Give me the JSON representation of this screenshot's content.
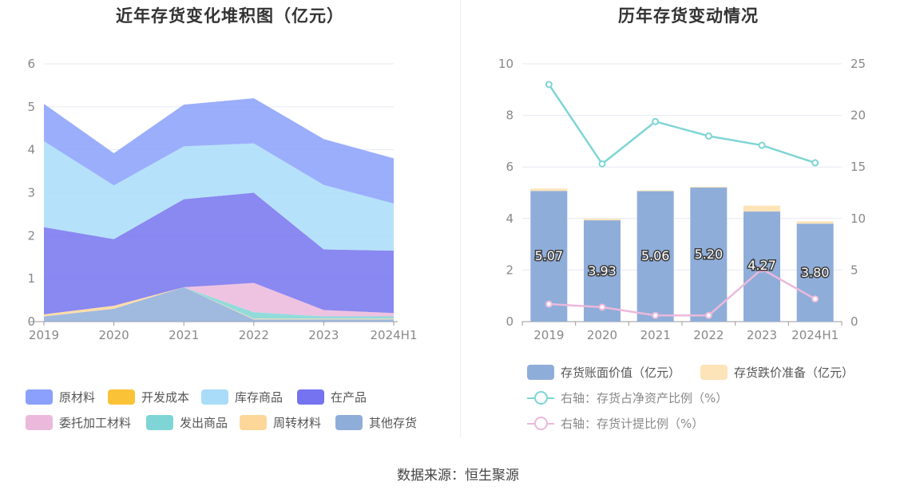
{
  "left_chart": {
    "title": "近年存货变化堆积图（亿元）",
    "legend": [
      {
        "label": "原材料",
        "color": "#8aa0fb"
      },
      {
        "label": "开发成本",
        "color": "#fac337"
      },
      {
        "label": "库存商品",
        "color": "#a9dcf9"
      },
      {
        "label": "在产品",
        "color": "#7573ef"
      },
      {
        "label": "委托加工材料",
        "color": "#ebb9dc"
      },
      {
        "label": "发出商品",
        "color": "#7fd5d5"
      },
      {
        "label": "周转材料",
        "color": "#fdd79a"
      },
      {
        "label": "其他存货",
        "color": "#8fadd9"
      }
    ]
  },
  "right_chart": {
    "title": "历年存货变动情况",
    "legend": [
      {
        "label": "存货账面价值（亿元）",
        "color": "#8fadd9",
        "kind": "bar"
      },
      {
        "label": "存货跌价准备（亿元）",
        "color": "#fde3b8",
        "kind": "bar"
      },
      {
        "label": "右轴：存货占净资产比例（%）",
        "color": "#7fd5d5",
        "kind": "line"
      },
      {
        "label": "右轴：存货计提比例（%）",
        "color": "#ebb9dc",
        "kind": "line"
      }
    ]
  },
  "source": "数据来源：恒生聚源",
  "chart_data": [
    {
      "type": "area",
      "stacked": true,
      "title": "近年存货变化堆积图（亿元）",
      "categories": [
        "2019",
        "2020",
        "2021",
        "2022",
        "2023",
        "2024H1"
      ],
      "ylim": [
        0,
        6
      ],
      "yticks": [
        0,
        1,
        2,
        3,
        4,
        5,
        6
      ],
      "grid": true,
      "legend_position": "bottom",
      "series": [
        {
          "name": "其他存货",
          "color": "#8fadd9",
          "values": [
            0.12,
            0.3,
            0.8,
            0.05,
            0.05,
            0.05
          ]
        },
        {
          "name": "周转材料",
          "color": "#fdd79a",
          "values": [
            0.05,
            0.07,
            0.0,
            0.02,
            0.02,
            0.02
          ]
        },
        {
          "name": "发出商品",
          "color": "#7fd5d5",
          "values": [
            0.0,
            0.0,
            0.0,
            0.15,
            0.05,
            0.05
          ]
        },
        {
          "name": "委托加工材料",
          "color": "#ebb9dc",
          "values": [
            0.0,
            0.0,
            0.0,
            0.68,
            0.15,
            0.08
          ]
        },
        {
          "name": "在产品",
          "color": "#7573ef",
          "values": [
            2.03,
            1.55,
            2.05,
            2.1,
            1.41,
            1.45
          ]
        },
        {
          "name": "库存商品",
          "color": "#a9dcf9",
          "values": [
            2.0,
            1.25,
            1.23,
            1.15,
            1.5,
            1.1
          ]
        },
        {
          "name": "开发成本",
          "color": "#fac337",
          "values": [
            0.0,
            0.0,
            0.0,
            0.0,
            0.0,
            0.0
          ]
        },
        {
          "name": "原材料",
          "color": "#8aa0fb",
          "values": [
            0.87,
            0.75,
            0.97,
            1.05,
            1.07,
            1.05
          ]
        }
      ]
    },
    {
      "type": "bar",
      "stacked": true,
      "title": "历年存货变动情况",
      "categories": [
        "2019",
        "2020",
        "2021",
        "2022",
        "2023",
        "2024H1"
      ],
      "ylim": [
        0,
        10
      ],
      "yticks": [
        0,
        2,
        4,
        6,
        8,
        10
      ],
      "y2lim": [
        0,
        25
      ],
      "y2ticks": [
        0,
        5,
        10,
        15,
        20,
        25
      ],
      "grid": true,
      "legend_position": "bottom",
      "series": [
        {
          "name": "存货账面价值（亿元）",
          "type": "bar",
          "color": "#8fadd9",
          "values": [
            5.07,
            3.93,
            5.06,
            5.2,
            4.27,
            3.8
          ],
          "labels": [
            "5.07",
            "3.93",
            "5.06",
            "5.20",
            "4.27",
            "3.80"
          ]
        },
        {
          "name": "存货跌价准备（亿元）",
          "type": "bar",
          "color": "#fde3b8",
          "values": [
            0.09,
            0.06,
            0.03,
            0.03,
            0.23,
            0.09
          ]
        },
        {
          "name": "右轴：存货占净资产比例（%）",
          "type": "line",
          "axis": "right",
          "color": "#7fd5d5",
          "values": [
            23.0,
            15.3,
            19.4,
            18.0,
            17.1,
            15.4
          ]
        },
        {
          "name": "右轴：存货计提比例（%）",
          "type": "line",
          "axis": "right",
          "color": "#ebb9dc",
          "values": [
            1.7,
            1.4,
            0.6,
            0.6,
            5.1,
            2.2
          ]
        }
      ]
    }
  ]
}
